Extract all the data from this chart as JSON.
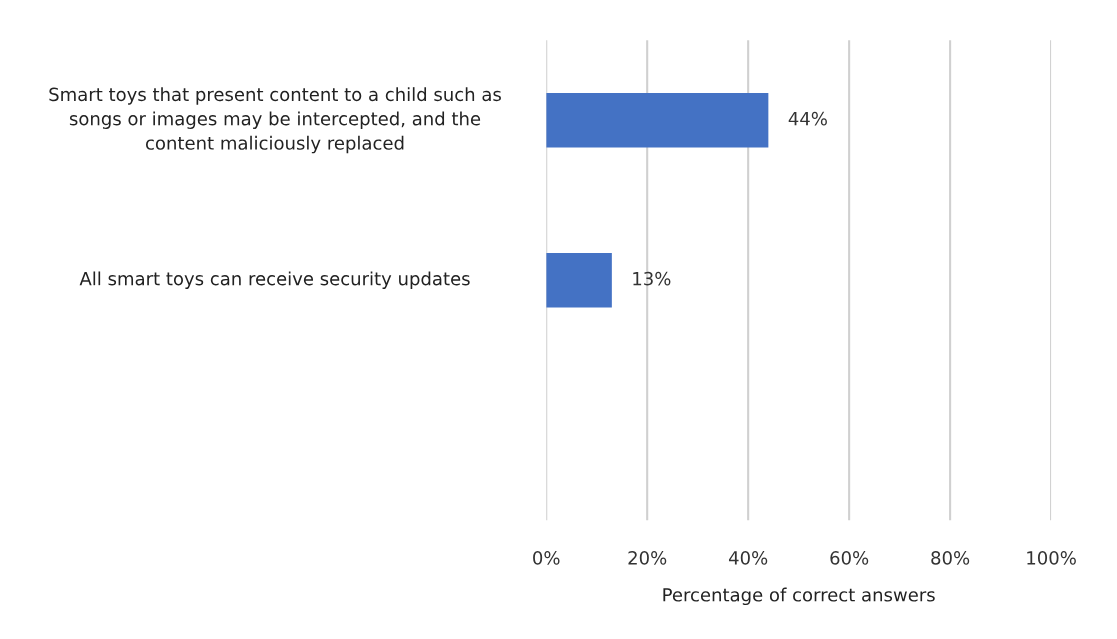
{
  "chart_data": {
    "type": "bar",
    "orientation": "horizontal",
    "xlabel": "Percentage of correct answers",
    "categories": [
      "Smart toys that present content to a child such as songs or images may be intercepted, and the content maliciously replaced",
      "All smart toys can receive security updates",
      null
    ],
    "values": [
      44,
      13,
      null
    ],
    "color": "#4472c4",
    "value_labels": [
      "44%",
      "13%",
      null
    ],
    "xlim": [
      0,
      100
    ],
    "xticks": [
      {
        "value": 0,
        "label": "0%"
      },
      {
        "value": 20,
        "label": "20%"
      },
      {
        "value": 40,
        "label": "40%"
      },
      {
        "value": 60,
        "label": "60%"
      },
      {
        "value": 80,
        "label": "80%"
      },
      {
        "value": 100,
        "label": "100%"
      }
    ],
    "grid": "x",
    "legend": false
  }
}
